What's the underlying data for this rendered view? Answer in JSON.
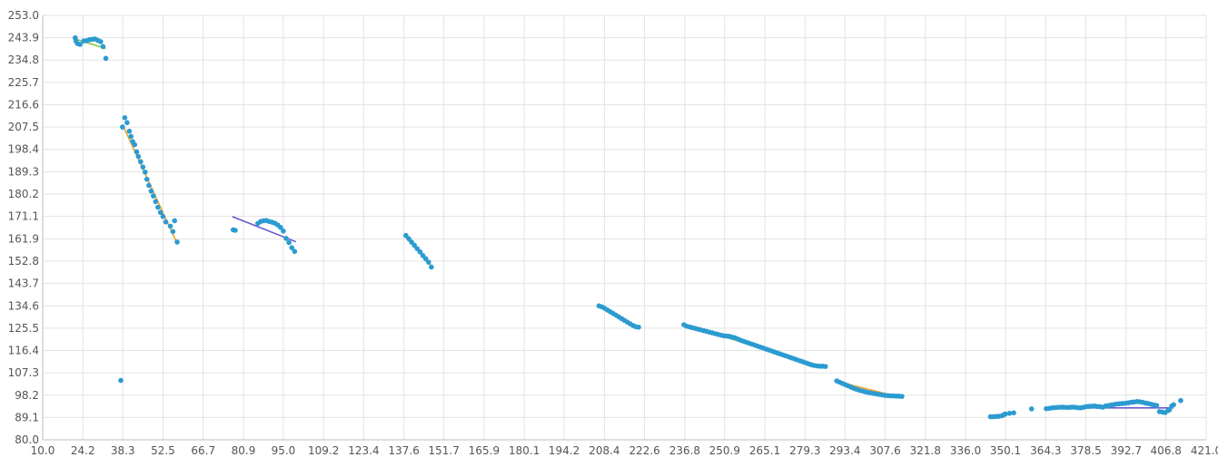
{
  "chart_data": {
    "type": "scatter",
    "grid": true,
    "legend": "none",
    "xlim": [
      10.0,
      421.0
    ],
    "ylim": [
      80.0,
      253.0
    ],
    "x_ticks": [
      "10.0",
      "24.2",
      "38.3",
      "52.5",
      "66.7",
      "80.9",
      "95.0",
      "109.2",
      "123.4",
      "137.6",
      "151.7",
      "165.9",
      "180.1",
      "194.2",
      "208.4",
      "222.6",
      "236.8",
      "250.9",
      "265.1",
      "279.3",
      "293.4",
      "307.6",
      "321.8",
      "336.0",
      "350.1",
      "364.3",
      "378.5",
      "392.7",
      "406.8",
      "421.0"
    ],
    "y_ticks": [
      "253.0",
      "243.9",
      "234.8",
      "225.7",
      "216.6",
      "207.5",
      "198.4",
      "189.3",
      "180.2",
      "171.1",
      "161.9",
      "152.8",
      "143.7",
      "134.6",
      "125.5",
      "116.4",
      "107.3",
      "98.2",
      "89.1",
      "80.0"
    ],
    "colors": {
      "points": "#2b9bd1",
      "trend_green": "#8dc63f",
      "trend_orange": "#f5a623",
      "trend_purple": "#6a5acd",
      "grid": "#e3e3e3",
      "axis": "#bdbdbd",
      "text": "#555555"
    },
    "points": [
      [
        21.5,
        243.9
      ],
      [
        21.8,
        242.5
      ],
      [
        22.3,
        241.5
      ],
      [
        23.2,
        241.2
      ],
      [
        24.5,
        242.6
      ],
      [
        25.5,
        242.7
      ],
      [
        26.5,
        243.1
      ],
      [
        27.5,
        243.3
      ],
      [
        28.5,
        243.4
      ],
      [
        29.5,
        242.8
      ],
      [
        30.5,
        242.3
      ],
      [
        31.3,
        240.3
      ],
      [
        32.3,
        235.5
      ],
      [
        37.6,
        104.2
      ],
      [
        38.2,
        207.5
      ],
      [
        39.0,
        211.3
      ],
      [
        39.8,
        209.3
      ],
      [
        40.6,
        205.8
      ],
      [
        41.2,
        203.7
      ],
      [
        41.8,
        201.6
      ],
      [
        42.5,
        200.3
      ],
      [
        43.2,
        197.4
      ],
      [
        43.8,
        195.5
      ],
      [
        44.6,
        193.4
      ],
      [
        45.4,
        191.2
      ],
      [
        46.2,
        189.1
      ],
      [
        46.8,
        186.2
      ],
      [
        47.5,
        183.7
      ],
      [
        48.3,
        181.4
      ],
      [
        49.1,
        179.4
      ],
      [
        49.9,
        177.1
      ],
      [
        50.7,
        174.8
      ],
      [
        51.6,
        172.7
      ],
      [
        52.5,
        171.0
      ],
      [
        53.5,
        168.8
      ],
      [
        55.1,
        167.1
      ],
      [
        56.0,
        164.9
      ],
      [
        56.6,
        169.3
      ],
      [
        57.5,
        160.6
      ],
      [
        77.3,
        165.6
      ],
      [
        78.0,
        165.4
      ],
      [
        86.0,
        168.2
      ],
      [
        87.0,
        169.0
      ],
      [
        88.0,
        169.3
      ],
      [
        89.0,
        169.4
      ],
      [
        90.0,
        169.0
      ],
      [
        91.0,
        168.7
      ],
      [
        92.0,
        168.3
      ],
      [
        93.0,
        167.6
      ],
      [
        94.0,
        166.6
      ],
      [
        95.0,
        165.1
      ],
      [
        96.0,
        162.1
      ],
      [
        97.0,
        160.4
      ],
      [
        98.0,
        158.3
      ],
      [
        99.0,
        156.8
      ],
      [
        138.3,
        163.3
      ],
      [
        139.3,
        162.0
      ],
      [
        140.3,
        160.6
      ],
      [
        141.3,
        159.3
      ],
      [
        142.3,
        157.9
      ],
      [
        143.3,
        156.6
      ],
      [
        144.3,
        155.1
      ],
      [
        145.3,
        153.8
      ],
      [
        146.3,
        152.4
      ],
      [
        147.3,
        150.4
      ],
      [
        206.5,
        134.6
      ],
      [
        207.5,
        134.2
      ],
      [
        208.5,
        133.6
      ],
      [
        209.5,
        132.9
      ],
      [
        210.5,
        132.2
      ],
      [
        211.5,
        131.5
      ],
      [
        212.5,
        130.8
      ],
      [
        213.5,
        130.1
      ],
      [
        214.5,
        129.4
      ],
      [
        215.5,
        128.7
      ],
      [
        216.5,
        128.0
      ],
      [
        217.5,
        127.3
      ],
      [
        218.5,
        126.6
      ],
      [
        219.5,
        126.1
      ],
      [
        220.5,
        125.9
      ],
      [
        236.5,
        126.9
      ],
      [
        237.5,
        126.3
      ],
      [
        238.5,
        126.0
      ],
      [
        239.5,
        125.7
      ],
      [
        240.5,
        125.4
      ],
      [
        241.5,
        125.1
      ],
      [
        242.5,
        124.8
      ],
      [
        243.5,
        124.5
      ],
      [
        244.5,
        124.2
      ],
      [
        245.5,
        123.9
      ],
      [
        246.5,
        123.6
      ],
      [
        247.5,
        123.3
      ],
      [
        248.5,
        123.0
      ],
      [
        249.5,
        122.7
      ],
      [
        250.5,
        122.4
      ],
      [
        251.5,
        122.3
      ],
      [
        252.5,
        122.2
      ],
      [
        253.5,
        121.9
      ],
      [
        254.5,
        121.6
      ],
      [
        255.5,
        121.1
      ],
      [
        256.5,
        120.6
      ],
      [
        257.5,
        120.2
      ],
      [
        258.5,
        119.8
      ],
      [
        259.5,
        119.4
      ],
      [
        260.5,
        119.0
      ],
      [
        261.5,
        118.6
      ],
      [
        262.5,
        118.2
      ],
      [
        263.5,
        117.8
      ],
      [
        264.5,
        117.4
      ],
      [
        265.5,
        117.0
      ],
      [
        266.5,
        116.6
      ],
      [
        267.5,
        116.2
      ],
      [
        268.5,
        115.8
      ],
      [
        269.5,
        115.4
      ],
      [
        270.5,
        115.0
      ],
      [
        271.5,
        114.6
      ],
      [
        272.5,
        114.2
      ],
      [
        273.5,
        113.8
      ],
      [
        274.5,
        113.4
      ],
      [
        275.5,
        113.0
      ],
      [
        276.5,
        112.6
      ],
      [
        277.5,
        112.2
      ],
      [
        278.5,
        111.8
      ],
      [
        279.5,
        111.4
      ],
      [
        280.5,
        111.0
      ],
      [
        281.5,
        110.6
      ],
      [
        282.5,
        110.3
      ],
      [
        283.5,
        110.1
      ],
      [
        284.5,
        110.0
      ],
      [
        285.5,
        110.0
      ],
      [
        286.5,
        109.9
      ],
      [
        290.5,
        104.0
      ],
      [
        291.5,
        103.5
      ],
      [
        292.5,
        103.0
      ],
      [
        293.5,
        102.5
      ],
      [
        294.5,
        102.0
      ],
      [
        295.5,
        101.5
      ],
      [
        296.5,
        101.0
      ],
      [
        297.5,
        100.6
      ],
      [
        298.5,
        100.2
      ],
      [
        299.5,
        99.9
      ],
      [
        300.5,
        99.6
      ],
      [
        301.5,
        99.3
      ],
      [
        302.5,
        99.1
      ],
      [
        303.5,
        98.9
      ],
      [
        304.5,
        98.7
      ],
      [
        305.5,
        98.5
      ],
      [
        306.5,
        98.3
      ],
      [
        307.5,
        98.1
      ],
      [
        308.5,
        98.0
      ],
      [
        309.5,
        97.9
      ],
      [
        310.5,
        97.9
      ],
      [
        311.5,
        97.8
      ],
      [
        312.5,
        97.8
      ],
      [
        313.5,
        97.7
      ],
      [
        344.8,
        89.4
      ],
      [
        345.8,
        89.4
      ],
      [
        346.8,
        89.5
      ],
      [
        347.8,
        89.6
      ],
      [
        348.8,
        89.8
      ],
      [
        349.5,
        90.2
      ],
      [
        350.0,
        90.5
      ],
      [
        351.5,
        90.8
      ],
      [
        353.0,
        91.0
      ],
      [
        359.3,
        92.6
      ],
      [
        364.5,
        92.7
      ],
      [
        365.5,
        92.8
      ],
      [
        366.5,
        93.0
      ],
      [
        367.5,
        93.1
      ],
      [
        368.5,
        93.2
      ],
      [
        369.5,
        93.3
      ],
      [
        370.5,
        93.3
      ],
      [
        371.5,
        93.2
      ],
      [
        372.5,
        93.2
      ],
      [
        373.5,
        93.3
      ],
      [
        374.5,
        93.3
      ],
      [
        375.5,
        93.1
      ],
      [
        376.5,
        93.0
      ],
      [
        377.5,
        93.2
      ],
      [
        378.5,
        93.5
      ],
      [
        379.5,
        93.6
      ],
      [
        380.5,
        93.7
      ],
      [
        381.5,
        93.8
      ],
      [
        382.5,
        93.6
      ],
      [
        383.5,
        93.5
      ],
      [
        384.5,
        93.3
      ],
      [
        385.5,
        93.8
      ],
      [
        386.5,
        94.0
      ],
      [
        387.5,
        94.2
      ],
      [
        388.5,
        94.4
      ],
      [
        389.5,
        94.6
      ],
      [
        390.5,
        94.7
      ],
      [
        391.5,
        94.8
      ],
      [
        392.5,
        94.9
      ],
      [
        393.5,
        95.1
      ],
      [
        394.5,
        95.3
      ],
      [
        395.5,
        95.4
      ],
      [
        396.5,
        95.6
      ],
      [
        397.5,
        95.5
      ],
      [
        398.5,
        95.3
      ],
      [
        399.5,
        95.0
      ],
      [
        400.5,
        94.8
      ],
      [
        401.5,
        94.5
      ],
      [
        402.5,
        94.2
      ],
      [
        403.5,
        94.0
      ],
      [
        404.5,
        91.5
      ],
      [
        405.5,
        91.3
      ],
      [
        406.5,
        91.1
      ],
      [
        407.5,
        91.9
      ],
      [
        408.0,
        92.2
      ],
      [
        408.8,
        93.8
      ],
      [
        409.5,
        94.3
      ],
      [
        412.0,
        96.0
      ]
    ],
    "trend_lines": [
      {
        "color": "#8dc63f",
        "x": [
          21.5,
          32.3
        ],
        "y": [
          243.4,
          239.5
        ]
      },
      {
        "color": "#f5a623",
        "x": [
          38.2,
          57.5
        ],
        "y": [
          208.5,
          160.0
        ]
      },
      {
        "color": "#6a5acd",
        "x": [
          77.0,
          99.5
        ],
        "y": [
          171.0,
          160.7
        ]
      },
      {
        "color": "#f5a623",
        "x": [
          138.3,
          147.3
        ],
        "y": [
          162.5,
          151.0
        ]
      },
      {
        "color": "#8dc63f",
        "x": [
          236.5,
          286.5
        ],
        "y": [
          127.0,
          109.5
        ]
      },
      {
        "color": "#f5a623",
        "x": [
          290.5,
          313.5
        ],
        "y": [
          103.8,
          97.2
        ]
      },
      {
        "color": "#6a5acd",
        "x": [
          364.5,
          409.5
        ],
        "y": [
          93.0,
          93.0
        ]
      }
    ]
  }
}
